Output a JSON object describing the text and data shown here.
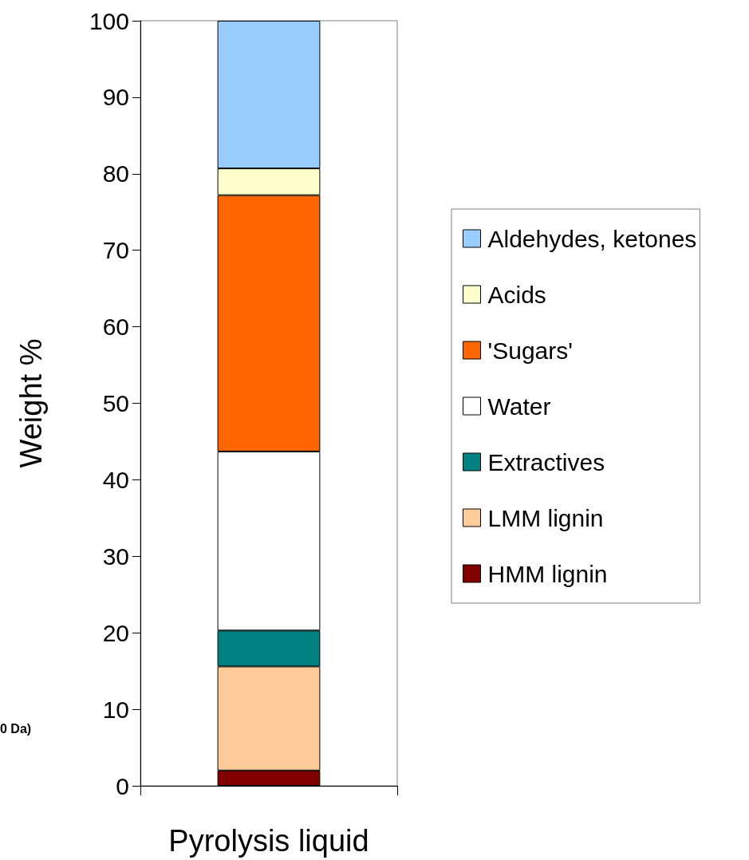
{
  "chart_data": {
    "type": "bar",
    "stacked": true,
    "ylabel": "Weight %",
    "categories": [
      "Pyrolysis liquid"
    ],
    "series": [
      {
        "name": "HMM lignin",
        "color": "#800000",
        "values": [
          2
        ]
      },
      {
        "name": "LMM lignin",
        "color": "#ffcc99",
        "values": [
          13.6
        ]
      },
      {
        "name": "Extractives",
        "color": "#008080",
        "values": [
          4.7
        ]
      },
      {
        "name": "Water",
        "color": "#ffffff",
        "values": [
          23.4
        ]
      },
      {
        "name": "'Sugars'",
        "color": "#ff6600",
        "values": [
          33.5
        ]
      },
      {
        "name": "Acids",
        "color": "#ffffcc",
        "values": [
          3.5
        ]
      },
      {
        "name": "Aldehydes, ketones",
        "color": "#99ccff",
        "values": [
          19.3
        ]
      }
    ],
    "ylim": [
      0,
      100
    ],
    "yticks": [
      0,
      10,
      20,
      30,
      40,
      50,
      60,
      70,
      80,
      90,
      100
    ],
    "grid": false,
    "legend": "right",
    "annotations": [
      "0 Da)"
    ]
  }
}
